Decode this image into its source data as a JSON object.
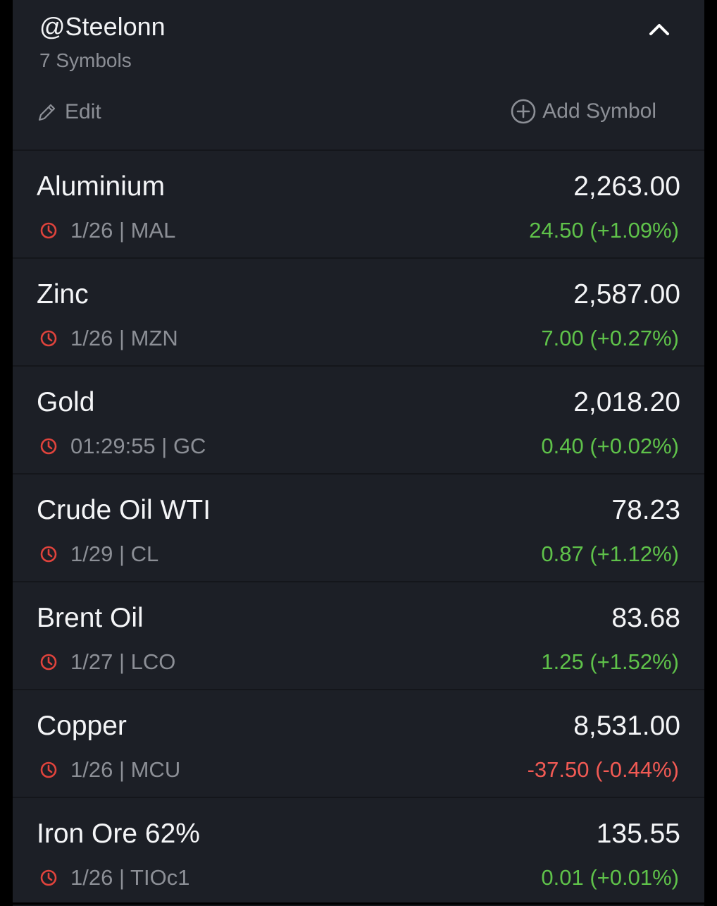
{
  "header": {
    "title": "@Steelonn",
    "subtitle": "7 Symbols",
    "edit_label": "Edit",
    "add_label": "Add Symbol"
  },
  "colors": {
    "positive": "#5fc24a",
    "negative": "#f25a54",
    "clock": "#e0433c"
  },
  "symbols": [
    {
      "name": "Aluminium",
      "price": "2,263.00",
      "meta": "1/26 | MAL",
      "change": "24.50 (+1.09%)",
      "direction": "up"
    },
    {
      "name": "Zinc",
      "price": "2,587.00",
      "meta": "1/26 | MZN",
      "change": "7.00 (+0.27%)",
      "direction": "up"
    },
    {
      "name": "Gold",
      "price": "2,018.20",
      "meta": "01:29:55 | GC",
      "change": "0.40 (+0.02%)",
      "direction": "up"
    },
    {
      "name": "Crude Oil WTI",
      "price": "78.23",
      "meta": "1/29 | CL",
      "change": "0.87 (+1.12%)",
      "direction": "up"
    },
    {
      "name": "Brent Oil",
      "price": "83.68",
      "meta": "1/27 | LCO",
      "change": "1.25 (+1.52%)",
      "direction": "up"
    },
    {
      "name": "Copper",
      "price": "8,531.00",
      "meta": "1/26 | MCU",
      "change": "-37.50 (-0.44%)",
      "direction": "down"
    },
    {
      "name": "Iron Ore 62%",
      "price": "135.55",
      "meta": "1/26 | TIOc1",
      "change": "0.01 (+0.01%)",
      "direction": "up"
    }
  ]
}
